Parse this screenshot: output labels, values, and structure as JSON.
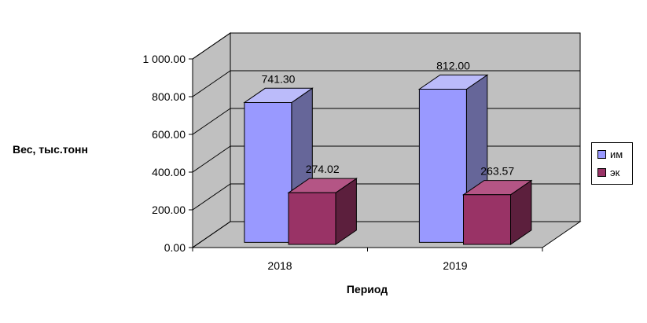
{
  "chart_data": {
    "type": "bar",
    "style": "3d-column",
    "title": "",
    "categories": [
      "2018",
      "2019"
    ],
    "series": [
      {
        "name": "им",
        "values": [
          741.3,
          812.0
        ],
        "labels": [
          "741.30",
          "812.00"
        ],
        "color": "#9999FF",
        "color_top": "#BBBBFA",
        "color_side": "#666699"
      },
      {
        "name": "эк",
        "values": [
          274.02,
          263.57
        ],
        "labels": [
          "274.02",
          "263.57"
        ],
        "color": "#993366",
        "color_top": "#B45585",
        "color_side": "#5C1F3D"
      }
    ],
    "xlabel": "Период",
    "ylabel": "Вес, тыс.тонн",
    "ylim": [
      0,
      1000
    ],
    "ytick_step": 200,
    "yticks": [
      "0.00",
      "200.00",
      "400.00",
      "600.00",
      "800.00",
      "1 000.00"
    ],
    "legend_position": "right",
    "grid": true,
    "wall_color": "#C0C0C0",
    "background_color": "#FFFFFF"
  }
}
